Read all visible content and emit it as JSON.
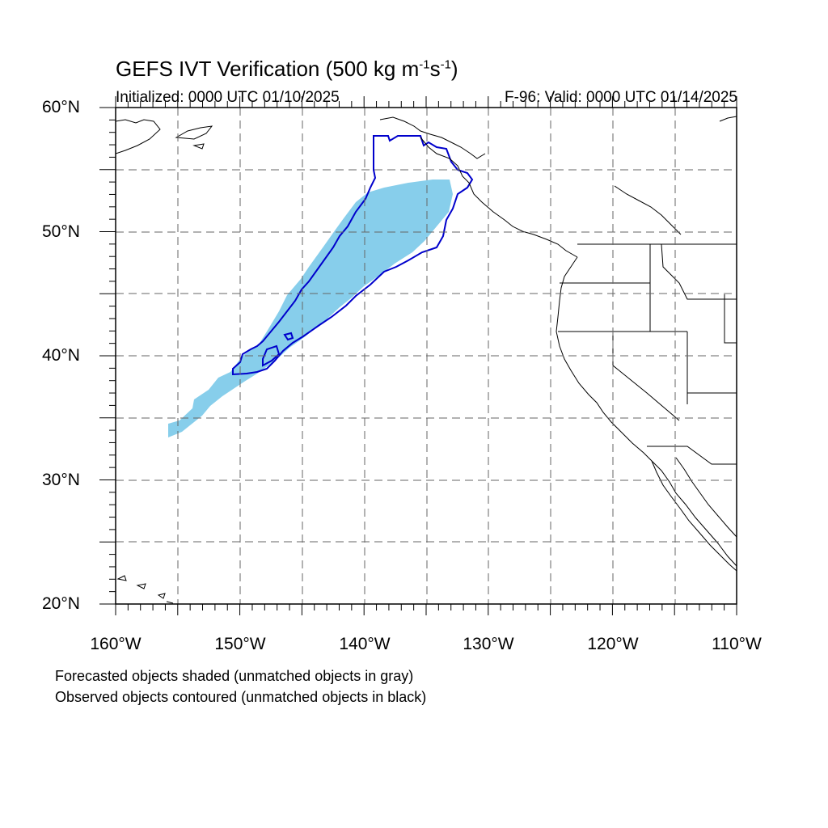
{
  "title": {
    "main": "GEFS IVT Verification (500 kg m",
    "exp1": "-1",
    "mid": "s",
    "exp2": "-1",
    "end": ")"
  },
  "subtitle": {
    "initialized": "Initialized: 0000 UTC 01/10/2025",
    "valid": "F-96: Valid: 0000 UTC 01/14/2025"
  },
  "axes": {
    "lat_labels": [
      "60°N",
      "50°N",
      "40°N",
      "30°N",
      "20°N"
    ],
    "lon_labels": [
      "160°W",
      "150°W",
      "140°W",
      "130°W",
      "120°W",
      "110°W"
    ],
    "lat_range": [
      20,
      60
    ],
    "lon_range": [
      -160,
      -110
    ],
    "grid": "dashed every 5 degrees"
  },
  "legend_notes": {
    "line1": "Forecasted objects shaded (unmatched objects in gray)",
    "line2": "Observed objects contoured (unmatched objects in black)"
  },
  "colors": {
    "forecast_fill": "#87ceeb",
    "observed_contour": "#0000cc",
    "coastline": "#000000",
    "grid": "#666666"
  }
}
